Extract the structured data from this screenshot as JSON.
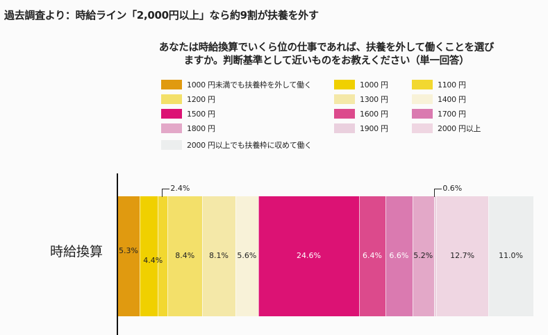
{
  "headline": "過去調査より：時給ライン「2,000円以上」なら約9割が扶養を外す",
  "chart_data": {
    "type": "bar",
    "orientation": "horizontal-stacked",
    "title": "あなたは時給換算でいくら位の仕事であれば、扶養を外して働くことを選びますか。判断基準として近いものをお教えください（単一回答）",
    "title_lines": [
      "あなたは時給換算でいくら位の仕事であれば、扶養を外して働くことを選び",
      "ますか。判断基準として近いものをお教えください（単一回答）"
    ],
    "categories": [
      "時給換算"
    ],
    "unit": "%",
    "series": [
      {
        "name": "1000 円未満でも扶養枠を外して働く",
        "value": 5.3,
        "label": "5.3%",
        "color": "#e09a10",
        "label_color": "#222"
      },
      {
        "name": "1000 円",
        "value": 4.4,
        "label": "4.4%",
        "color": "#f0d000",
        "label_color": "#222"
      },
      {
        "name": "1100 円",
        "value": 2.4,
        "label": "2.4%",
        "color": "#f2d830",
        "label_color": "#222"
      },
      {
        "name": "1200 円",
        "value": 8.4,
        "label": "8.4%",
        "color": "#f3e06a",
        "label_color": "#222"
      },
      {
        "name": "1300 円",
        "value": 8.1,
        "label": "8.1%",
        "color": "#f4e8a8",
        "label_color": "#222"
      },
      {
        "name": "1400 円",
        "value": 5.6,
        "label": "5.6%",
        "color": "#f8f2d8",
        "label_color": "#222"
      },
      {
        "name": "1500 円",
        "value": 24.6,
        "label": "24.6%",
        "color": "#dc1274",
        "label_color": "#ffffff"
      },
      {
        "name": "1600 円",
        "value": 6.4,
        "label": "6.4%",
        "color": "#dc4a8c",
        "label_color": "#ffffff"
      },
      {
        "name": "1700 円",
        "value": 6.6,
        "label": "6.6%",
        "color": "#da7ab0",
        "label_color": "#ffffff"
      },
      {
        "name": "1800 円",
        "value": 5.2,
        "label": "5.2%",
        "color": "#e3a8c8",
        "label_color": "#222"
      },
      {
        "name": "1900 円",
        "value": 0.6,
        "label": "0.6%",
        "color": "#ead0de",
        "label_color": "#222"
      },
      {
        "name": "2000 円以上",
        "value": 12.7,
        "label": "12.7%",
        "color": "#efd6e2",
        "label_color": "#222"
      },
      {
        "name": "2000 円以上でも扶養枠に収めて働く",
        "value": 11.0,
        "label": "11.0%",
        "color": "#eceeee",
        "label_color": "#222"
      }
    ],
    "legend_placement": "top",
    "grid": false
  }
}
